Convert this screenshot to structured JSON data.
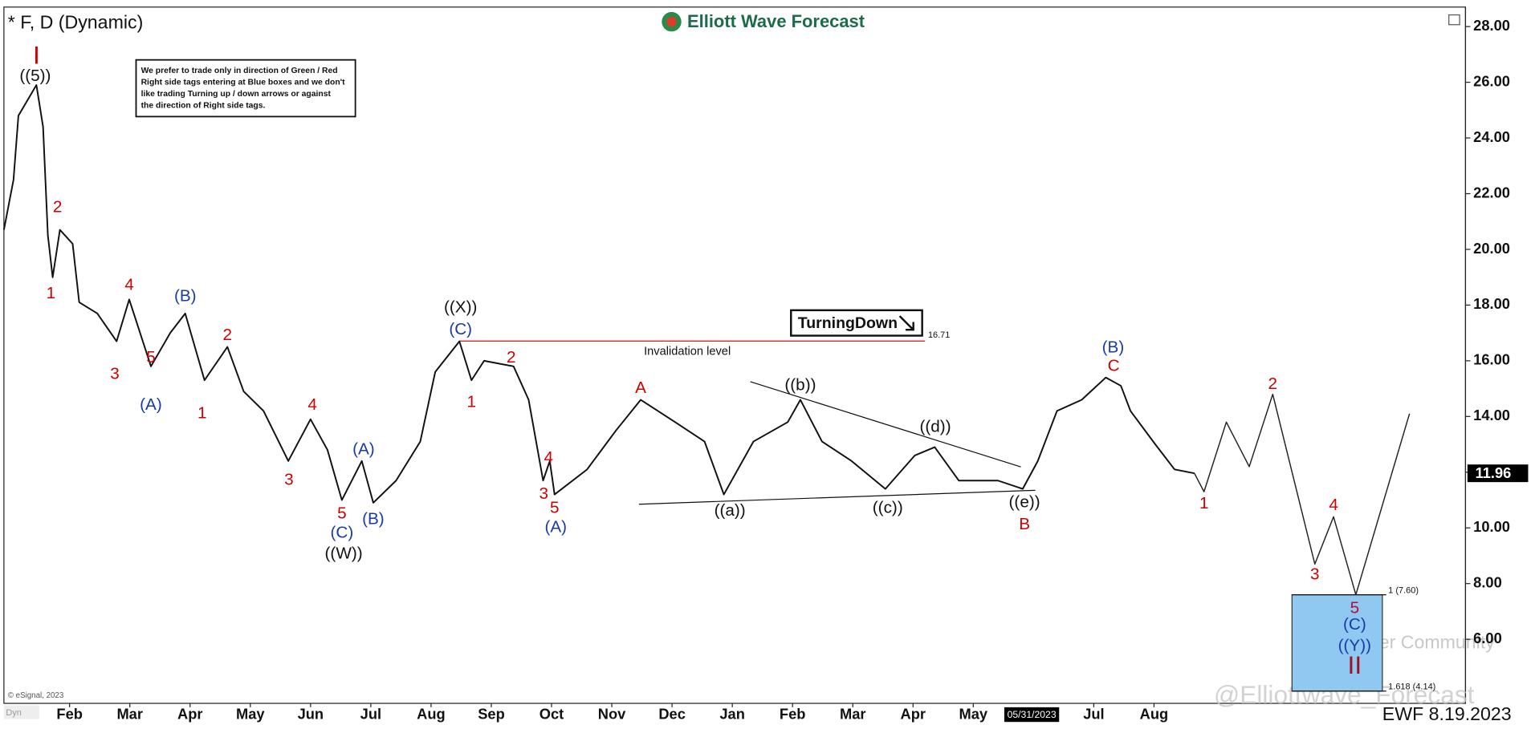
{
  "chart_data": {
    "type": "line",
    "title": "* F, D (Dynamic)",
    "brand": "Elliott Wave Forecast",
    "date_stamp": "EWF 8.19.2023",
    "source": "© eSignal, 2023",
    "corner_tag": "Dyn",
    "badge": "TurningDown",
    "note": [
      "We prefer to trade only in direction of Green / Red",
      "Right side tags entering at Blue boxes and we don't",
      "like trading Turning up / down arrows or against",
      "the direction of Right side tags."
    ],
    "watermarks": [
      "@Elliottwave_Forecast",
      "Tiger Community"
    ],
    "xlim": [
      -0.09,
      24.17
    ],
    "ylim": [
      3.7,
      28.7
    ],
    "grid": false,
    "xticks": [
      {
        "value": 1,
        "label": "Feb"
      },
      {
        "value": 2,
        "label": "Mar"
      },
      {
        "value": 3,
        "label": "Apr"
      },
      {
        "value": 4,
        "label": "May"
      },
      {
        "value": 5,
        "label": "Jun"
      },
      {
        "value": 6,
        "label": "Jul"
      },
      {
        "value": 7,
        "label": "Aug"
      },
      {
        "value": 8,
        "label": "Sep"
      },
      {
        "value": 9,
        "label": "Oct"
      },
      {
        "value": 10,
        "label": "Nov"
      },
      {
        "value": 11,
        "label": "Dec"
      },
      {
        "value": 12,
        "label": "Jan"
      },
      {
        "value": 13,
        "label": "Feb"
      },
      {
        "value": 14,
        "label": "Mar"
      },
      {
        "value": 15,
        "label": "Apr"
      },
      {
        "value": 16,
        "label": "May"
      },
      {
        "value": 18,
        "label": "Jul"
      },
      {
        "value": 19,
        "label": "Aug"
      }
    ],
    "yticks": [
      {
        "value": 6,
        "label": "6.00"
      },
      {
        "value": 8,
        "label": "8.00"
      },
      {
        "value": 10,
        "label": "10.00"
      },
      {
        "value": 12,
        "label": "12.00"
      },
      {
        "value": 14,
        "label": "14.00"
      },
      {
        "value": 16,
        "label": "16.00"
      },
      {
        "value": 18,
        "label": "18.00"
      },
      {
        "value": 20,
        "label": "20.00"
      },
      {
        "value": 22,
        "label": "22.00"
      },
      {
        "value": 24,
        "label": "24.00"
      },
      {
        "value": 26,
        "label": "26.00"
      },
      {
        "value": 28,
        "label": "28.00"
      }
    ],
    "crosshair": {
      "label": "05/31/2023",
      "x": 16.97
    },
    "last_price": 11.96,
    "series": [
      {
        "color": "#111111",
        "x": [
          -0.09,
          0.07,
          0.15,
          0.45,
          0.56,
          0.64,
          0.72,
          0.84,
          1.05,
          1.16,
          1.46,
          1.78,
          1.99,
          2.35,
          2.67,
          2.92,
          3.24,
          3.62,
          3.89,
          4.22,
          4.63,
          5.0,
          5.28,
          5.52,
          5.85,
          6.04,
          6.42,
          6.82,
          7.07,
          7.47,
          7.67,
          7.88,
          8.37,
          8.62,
          8.86,
          8.97,
          9.05,
          9.59,
          10.07,
          10.48,
          11.05,
          11.54,
          11.86,
          12.35,
          12.92,
          13.13,
          13.49,
          13.98,
          14.54,
          15.03,
          15.36,
          15.76,
          16.41,
          16.82,
          17.07,
          17.39,
          17.8,
          18.2,
          18.45,
          18.61,
          19.02,
          19.34,
          19.67
        ],
        "values": [
          20.7,
          22.5,
          24.8,
          25.9,
          24.4,
          20.5,
          19.0,
          20.7,
          20.2,
          18.1,
          17.7,
          16.7,
          18.2,
          15.8,
          17.0,
          17.7,
          15.3,
          16.5,
          14.9,
          14.2,
          12.4,
          13.9,
          12.8,
          11.0,
          12.4,
          10.9,
          11.7,
          13.1,
          15.6,
          16.7,
          15.3,
          16.0,
          15.8,
          14.6,
          11.7,
          12.4,
          11.2,
          12.1,
          13.5,
          14.6,
          13.8,
          13.1,
          11.2,
          13.1,
          13.8,
          14.6,
          13.1,
          12.4,
          11.4,
          12.6,
          12.9,
          11.7,
          11.7,
          11.4,
          12.4,
          14.2,
          14.6,
          15.4,
          15.1,
          14.2,
          13.0,
          12.1,
          11.96
        ]
      },
      {
        "color": "#222222",
        "x": [
          19.67,
          19.83,
          20.2,
          20.58,
          20.97,
          21.67,
          21.98,
          22.35,
          23.24
        ],
        "values": [
          11.96,
          11.3,
          13.8,
          12.2,
          14.8,
          8.7,
          10.4,
          7.6,
          14.1
        ]
      }
    ],
    "invalidation": {
      "label": "Invalidation level",
      "value": 16.71,
      "x": [
        7.47,
        15.2
      ],
      "color": "#d01010"
    },
    "trendlines": [
      {
        "x": [
          12.3,
          16.79
        ],
        "y": [
          15.25,
          12.19
        ]
      },
      {
        "x": [
          10.45,
          17.03
        ],
        "y": [
          10.85,
          11.35
        ]
      }
    ],
    "blue_box": {
      "x": [
        21.29,
        22.79
      ],
      "color": "#8fc8f0"
    },
    "fib_levels": [
      {
        "label": "1 (7.60)",
        "value": 7.6
      },
      {
        "label": "1.618 (4.14)",
        "value": 4.14
      }
    ],
    "degree_labels": [
      {
        "text": "I",
        "x": 0.45,
        "y": 26.9,
        "color": "#d00000"
      },
      {
        "text": "II",
        "x": 22.33,
        "y": 5.0,
        "color": "#a01020"
      }
    ],
    "wave_labels": [
      {
        "text": "((5))",
        "x": 0.43,
        "y": 26.2,
        "color": "#111111"
      },
      {
        "text": "2",
        "x": 0.8,
        "y": 21.5,
        "color": "#d00000"
      },
      {
        "text": "1",
        "x": 0.69,
        "y": 18.4,
        "color": "#d00000"
      },
      {
        "text": "4",
        "x": 1.99,
        "y": 18.7,
        "color": "#d00000"
      },
      {
        "text": "(B)",
        "x": 2.92,
        "y": 18.3,
        "color": "#1a3aa8"
      },
      {
        "text": "3",
        "x": 1.75,
        "y": 15.5,
        "color": "#d00000"
      },
      {
        "text": "5",
        "x": 2.35,
        "y": 16.1,
        "color": "#d00000"
      },
      {
        "text": "(A)",
        "x": 2.35,
        "y": 14.4,
        "color": "#1a3aa8"
      },
      {
        "text": "2",
        "x": 3.62,
        "y": 16.9,
        "color": "#d00000"
      },
      {
        "text": "1",
        "x": 3.2,
        "y": 14.1,
        "color": "#d00000"
      },
      {
        "text": "3",
        "x": 4.64,
        "y": 11.7,
        "color": "#d00000"
      },
      {
        "text": "4",
        "x": 5.03,
        "y": 14.4,
        "color": "#d00000"
      },
      {
        "text": "(A)",
        "x": 5.88,
        "y": 12.8,
        "color": "#1a3aa8"
      },
      {
        "text": "5",
        "x": 5.52,
        "y": 10.5,
        "color": "#d00000"
      },
      {
        "text": "(C)",
        "x": 5.52,
        "y": 9.8,
        "color": "#1a3aa8"
      },
      {
        "text": "((W))",
        "x": 5.55,
        "y": 9.05,
        "color": "#111111"
      },
      {
        "text": "(B)",
        "x": 6.04,
        "y": 10.3,
        "color": "#1a3aa8"
      },
      {
        "text": "((X))",
        "x": 7.49,
        "y": 17.9,
        "color": "#111111"
      },
      {
        "text": "(C)",
        "x": 7.49,
        "y": 17.1,
        "color": "#1a3aa8"
      },
      {
        "text": "1",
        "x": 7.67,
        "y": 14.5,
        "color": "#d00000"
      },
      {
        "text": "2",
        "x": 8.33,
        "y": 16.1,
        "color": "#d00000"
      },
      {
        "text": "4",
        "x": 8.95,
        "y": 12.5,
        "color": "#d00000"
      },
      {
        "text": "3",
        "x": 8.87,
        "y": 11.2,
        "color": "#d00000"
      },
      {
        "text": "5",
        "x": 9.05,
        "y": 10.7,
        "color": "#d00000"
      },
      {
        "text": "(A)",
        "x": 9.07,
        "y": 10.0,
        "color": "#1a3aa8"
      },
      {
        "text": "A",
        "x": 10.48,
        "y": 15.0,
        "color": "#d00000"
      },
      {
        "text": "((a))",
        "x": 11.96,
        "y": 10.6,
        "color": "#111111"
      },
      {
        "text": "((b))",
        "x": 13.13,
        "y": 15.1,
        "color": "#111111"
      },
      {
        "text": "((c))",
        "x": 14.58,
        "y": 10.7,
        "color": "#111111"
      },
      {
        "text": "((d))",
        "x": 15.37,
        "y": 13.6,
        "color": "#111111"
      },
      {
        "text": "((e))",
        "x": 16.85,
        "y": 10.9,
        "color": "#111111"
      },
      {
        "text": "B",
        "x": 16.85,
        "y": 10.1,
        "color": "#d00000"
      },
      {
        "text": "(B)",
        "x": 18.32,
        "y": 16.45,
        "color": "#1a3aa8"
      },
      {
        "text": "C",
        "x": 18.33,
        "y": 15.8,
        "color": "#d00000"
      },
      {
        "text": "1",
        "x": 19.83,
        "y": 10.85,
        "color": "#d00000"
      },
      {
        "text": "2",
        "x": 20.97,
        "y": 15.15,
        "color": "#d00000"
      },
      {
        "text": "3",
        "x": 21.67,
        "y": 8.3,
        "color": "#d00000"
      },
      {
        "text": "4",
        "x": 21.98,
        "y": 10.8,
        "color": "#d00000"
      },
      {
        "text": "5",
        "x": 22.33,
        "y": 7.1,
        "color": "#b01040"
      },
      {
        "text": "(C)",
        "x": 22.33,
        "y": 6.5,
        "color": "#1a3aa8"
      },
      {
        "text": "((Y))",
        "x": 22.33,
        "y": 5.75,
        "color": "#1a3aa8"
      }
    ]
  }
}
